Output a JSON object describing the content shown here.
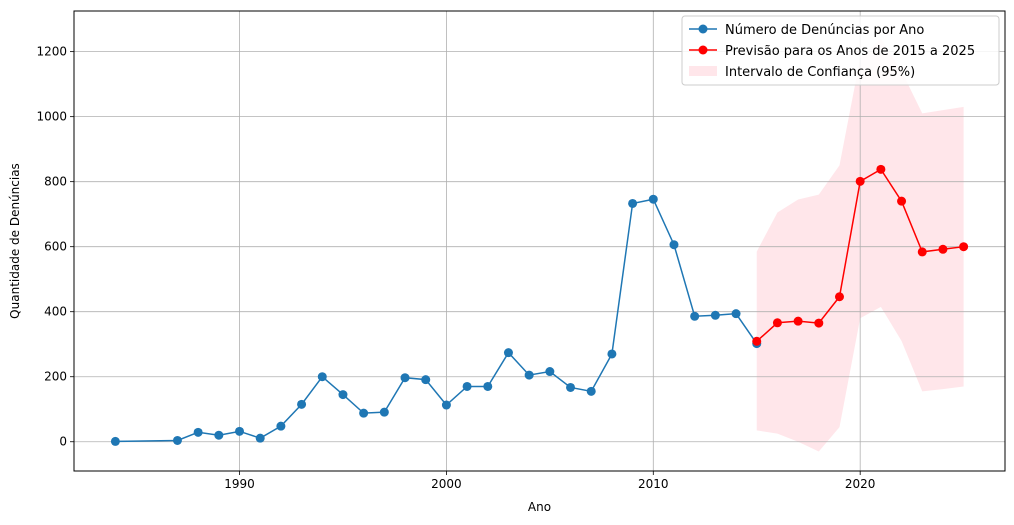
{
  "chart_data": {
    "type": "line",
    "xlabel": "Ano",
    "ylabel": "Quantidade de Denúncias",
    "xlim": [
      1982,
      2027
    ],
    "ylim": [
      -90,
      1325
    ],
    "xticks": [
      1990,
      2000,
      2010,
      2020
    ],
    "yticks": [
      0,
      200,
      400,
      600,
      800,
      1000,
      1200
    ],
    "grid": true,
    "legend_position": "top-right",
    "series": [
      {
        "name": "Número de Denúncias por Ano",
        "color": "#1f77b4",
        "marker": "circle",
        "x": [
          1984,
          1987,
          1988,
          1989,
          1990,
          1991,
          1992,
          1993,
          1994,
          1995,
          1996,
          1997,
          1998,
          1999,
          2000,
          2001,
          2002,
          2003,
          2004,
          2005,
          2006,
          2007,
          2008,
          2009,
          2010,
          2011,
          2012,
          2013,
          2014,
          2015
        ],
        "values": [
          1,
          4,
          29,
          20,
          32,
          11,
          48,
          115,
          200,
          145,
          88,
          91,
          197,
          191,
          113,
          170,
          170,
          274,
          205,
          216,
          167,
          155,
          270,
          733,
          746,
          606,
          386,
          389,
          394,
          302
        ]
      },
      {
        "name": "Previsão para os Anos de 2015 a 2025",
        "color": "#ff0000",
        "marker": "circle",
        "x": [
          2015,
          2016,
          2017,
          2018,
          2019,
          2020,
          2021,
          2022,
          2023,
          2024,
          2025
        ],
        "values": [
          309,
          366,
          371,
          365,
          446,
          801,
          838,
          740,
          584,
          592,
          600
        ]
      }
    ],
    "confidence_interval": {
      "name": "Intervalo de Confiança (95%)",
      "color": "#ffc0cb",
      "x": [
        2015,
        2016,
        2017,
        2018,
        2019,
        2020,
        2021,
        2022,
        2023,
        2024,
        2025
      ],
      "lower": [
        35,
        25,
        0,
        -30,
        45,
        380,
        415,
        310,
        155,
        162,
        170
      ],
      "upper": [
        585,
        705,
        745,
        760,
        850,
        1180,
        1240,
        1140,
        1010,
        1020,
        1030
      ]
    }
  }
}
